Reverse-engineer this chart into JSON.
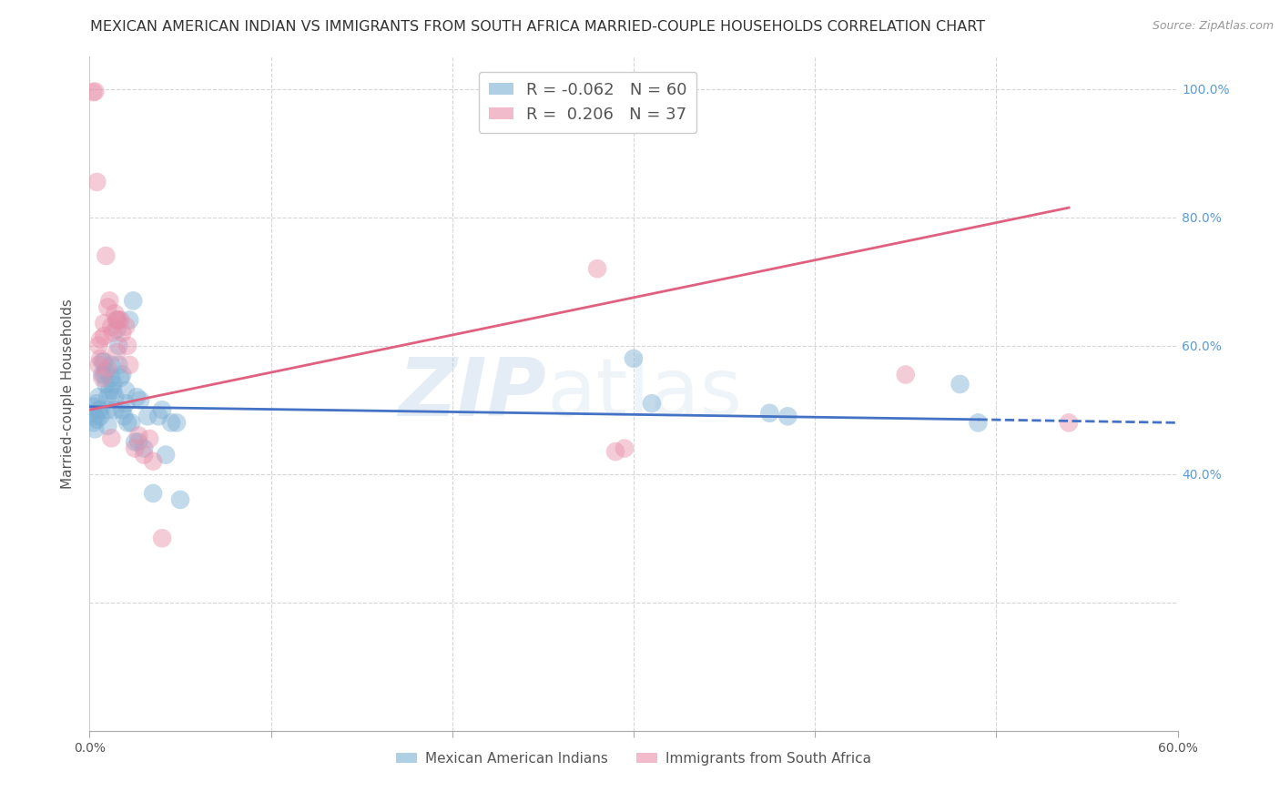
{
  "title": "MEXICAN AMERICAN INDIAN VS IMMIGRANTS FROM SOUTH AFRICA MARRIED-COUPLE HOUSEHOLDS CORRELATION CHART",
  "source": "Source: ZipAtlas.com",
  "ylabel": "Married-couple Households",
  "xlim": [
    0.0,
    0.6
  ],
  "ylim": [
    0.0,
    1.05
  ],
  "xticks": [
    0.0,
    0.1,
    0.2,
    0.3,
    0.4,
    0.5,
    0.6
  ],
  "yticks": [
    0.0,
    0.2,
    0.4,
    0.6,
    0.8,
    1.0
  ],
  "blue_color": "#7bafd4",
  "pink_color": "#e88faa",
  "blue_line_color": "#4472c4",
  "pink_line_color": "#e06080",
  "R_blue": -0.062,
  "N_blue": 60,
  "R_pink": 0.206,
  "N_pink": 37,
  "watermark_zip": "ZIP",
  "watermark_atlas": "atlas",
  "legend_label_blue": "Mexican American Indians",
  "legend_label_pink": "Immigrants from South Africa",
  "blue_line_x0": 0.0,
  "blue_line_y0": 0.505,
  "blue_line_x1": 0.49,
  "blue_line_y1": 0.485,
  "blue_line_dash_x0": 0.49,
  "blue_line_dash_y0": 0.485,
  "blue_line_dash_x1": 0.6,
  "blue_line_dash_y1": 0.48,
  "pink_line_x0": 0.0,
  "pink_line_y0": 0.5,
  "pink_line_x1": 0.54,
  "pink_line_y1": 0.815,
  "background_color": "#ffffff",
  "grid_color": "#cccccc",
  "title_fontsize": 11.5,
  "axis_label_fontsize": 11,
  "tick_fontsize": 10,
  "legend_fontsize": 13,
  "blue_points_x": [
    0.001,
    0.002,
    0.002,
    0.003,
    0.003,
    0.004,
    0.004,
    0.005,
    0.005,
    0.006,
    0.006,
    0.007,
    0.007,
    0.008,
    0.008,
    0.009,
    0.009,
    0.01,
    0.01,
    0.01,
    0.011,
    0.012,
    0.012,
    0.013,
    0.013,
    0.014,
    0.014,
    0.015,
    0.015,
    0.016,
    0.016,
    0.017,
    0.018,
    0.018,
    0.019,
    0.02,
    0.02,
    0.021,
    0.022,
    0.023,
    0.024,
    0.025,
    0.026,
    0.027,
    0.028,
    0.03,
    0.032,
    0.035,
    0.038,
    0.04,
    0.042,
    0.045,
    0.048,
    0.05,
    0.3,
    0.31,
    0.375,
    0.385,
    0.48,
    0.49
  ],
  "blue_points_y": [
    0.495,
    0.48,
    0.505,
    0.47,
    0.49,
    0.485,
    0.51,
    0.5,
    0.52,
    0.5,
    0.49,
    0.555,
    0.575,
    0.575,
    0.555,
    0.56,
    0.54,
    0.52,
    0.5,
    0.475,
    0.53,
    0.57,
    0.55,
    0.54,
    0.53,
    0.52,
    0.5,
    0.64,
    0.625,
    0.6,
    0.57,
    0.55,
    0.5,
    0.555,
    0.49,
    0.53,
    0.51,
    0.48,
    0.64,
    0.48,
    0.67,
    0.45,
    0.52,
    0.45,
    0.515,
    0.44,
    0.49,
    0.37,
    0.49,
    0.5,
    0.43,
    0.48,
    0.48,
    0.36,
    0.58,
    0.51,
    0.495,
    0.49,
    0.54,
    0.48
  ],
  "pink_points_x": [
    0.002,
    0.003,
    0.004,
    0.005,
    0.005,
    0.006,
    0.006,
    0.007,
    0.008,
    0.008,
    0.009,
    0.01,
    0.01,
    0.011,
    0.012,
    0.013,
    0.014,
    0.015,
    0.015,
    0.016,
    0.017,
    0.018,
    0.02,
    0.021,
    0.022,
    0.025,
    0.027,
    0.03,
    0.033,
    0.035,
    0.04,
    0.28,
    0.29,
    0.295,
    0.45,
    0.54,
    0.012
  ],
  "pink_points_y": [
    0.995,
    0.996,
    0.855,
    0.6,
    0.57,
    0.61,
    0.58,
    0.55,
    0.615,
    0.635,
    0.74,
    0.66,
    0.565,
    0.67,
    0.63,
    0.62,
    0.65,
    0.59,
    0.64,
    0.64,
    0.64,
    0.62,
    0.63,
    0.6,
    0.57,
    0.44,
    0.46,
    0.43,
    0.455,
    0.42,
    0.3,
    0.72,
    0.435,
    0.44,
    0.555,
    0.48,
    0.456
  ]
}
